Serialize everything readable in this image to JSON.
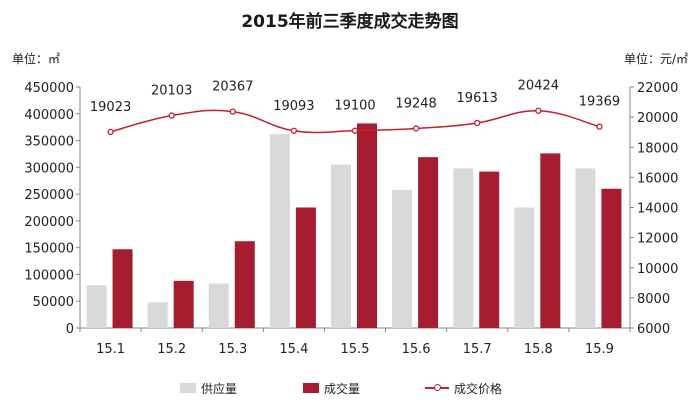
{
  "chart_data": {
    "type": "bar",
    "title": "2015年前三季度成交走势图",
    "categories": [
      "15.1",
      "15.2",
      "15.3",
      "15.4",
      "15.5",
      "15.6",
      "15.7",
      "15.8",
      "15.9"
    ],
    "left_axis": {
      "unit_label": "单位：㎡",
      "ylim": [
        0,
        450000
      ],
      "ticks": [
        "450000",
        "400000",
        "350000",
        "300000",
        "250000",
        "200000",
        "150000",
        "100000",
        "50000",
        "0"
      ]
    },
    "right_axis": {
      "unit_label": "单位：元/㎡",
      "ylim": [
        6000,
        22000
      ],
      "ticks": [
        "22000",
        "20000",
        "18000",
        "16000",
        "14000",
        "12000",
        "10000",
        "8000",
        "6000"
      ]
    },
    "series": [
      {
        "name": "供应量",
        "kind": "bar",
        "axis": "left",
        "color": "#d9d9d9",
        "values": [
          80000,
          48000,
          83000,
          362000,
          305000,
          258000,
          298000,
          225000,
          298000
        ]
      },
      {
        "name": "成交量",
        "kind": "bar",
        "axis": "left",
        "color": "#a51d2e",
        "values": [
          147000,
          88000,
          162000,
          225000,
          382000,
          319000,
          292000,
          326000,
          260000
        ]
      },
      {
        "name": "成交价格",
        "kind": "line",
        "axis": "right",
        "color": "#c41e34",
        "values": [
          19023,
          20103,
          20367,
          19093,
          19100,
          19248,
          19613,
          20424,
          19369
        ],
        "labels": [
          "19023",
          "20103",
          "20367",
          "19093",
          "19100",
          "19248",
          "19613",
          "20424",
          "19369"
        ]
      }
    ],
    "grid": false,
    "legend_position": "bottom"
  }
}
